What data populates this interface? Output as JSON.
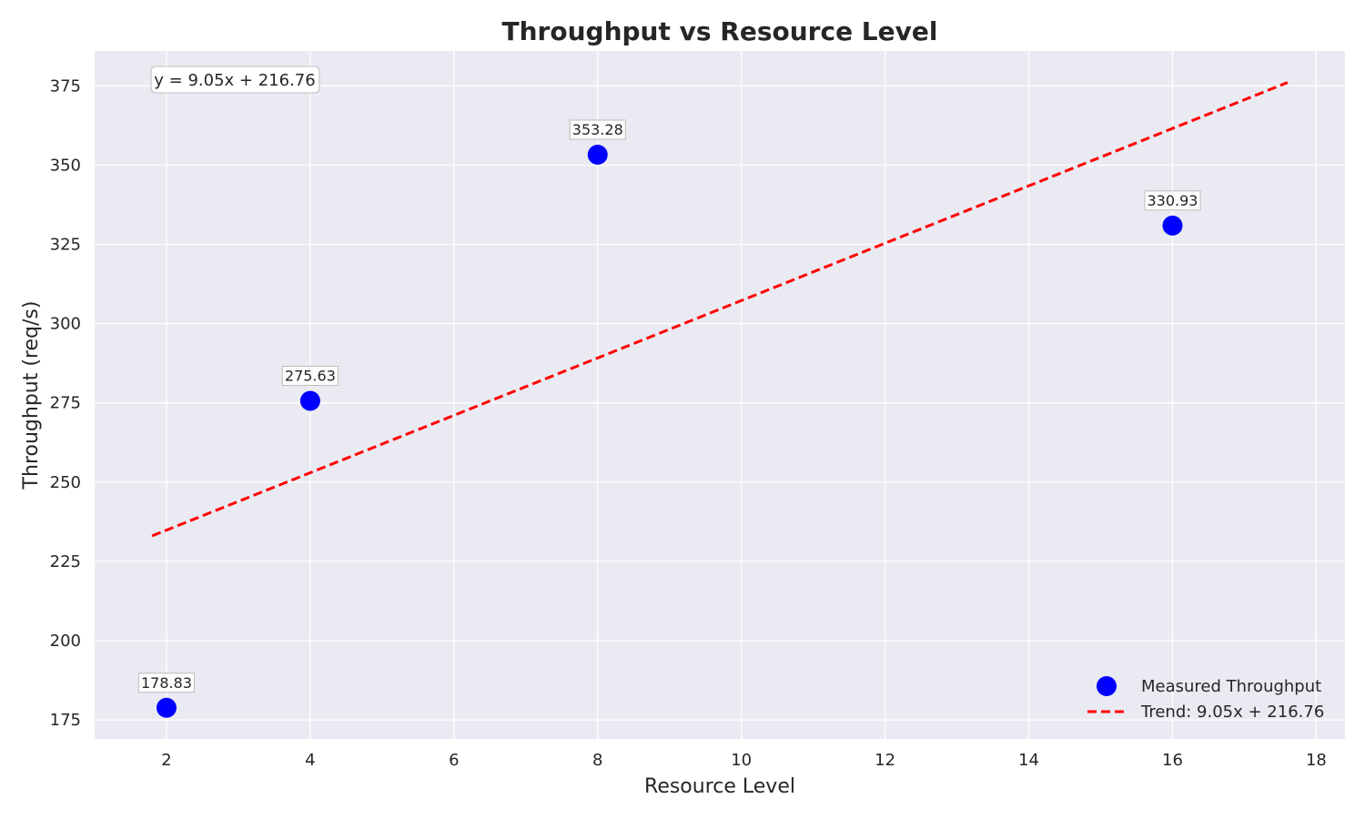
{
  "chart_data": {
    "type": "scatter",
    "title": "Throughput vs Resource Level",
    "xlabel": "Resource Level",
    "ylabel": "Throughput (req/s)",
    "xlim": [
      1,
      18.4
    ],
    "ylim": [
      169,
      386
    ],
    "xticks": [
      2,
      4,
      6,
      8,
      10,
      12,
      14,
      16,
      18
    ],
    "yticks": [
      175,
      200,
      225,
      250,
      275,
      300,
      325,
      350,
      375
    ],
    "grid": true,
    "series": [
      {
        "name": "Measured Throughput",
        "kind": "scatter",
        "color": "#0000ff",
        "x": [
          2,
          4,
          8,
          16
        ],
        "y": [
          178.83,
          275.63,
          353.28,
          330.93
        ],
        "labels": [
          "178.83",
          "275.63",
          "353.28",
          "330.93"
        ]
      },
      {
        "name": "Trend: 9.05x + 216.76",
        "kind": "line",
        "style": "dashed",
        "color": "#ff0000",
        "slope": 9.05,
        "intercept": 216.76,
        "x_range": [
          1.8,
          17.6
        ]
      }
    ],
    "annotation": "y = 9.05x + 216.76",
    "legend_position": "lower-right",
    "background": "#eaeaf2"
  }
}
